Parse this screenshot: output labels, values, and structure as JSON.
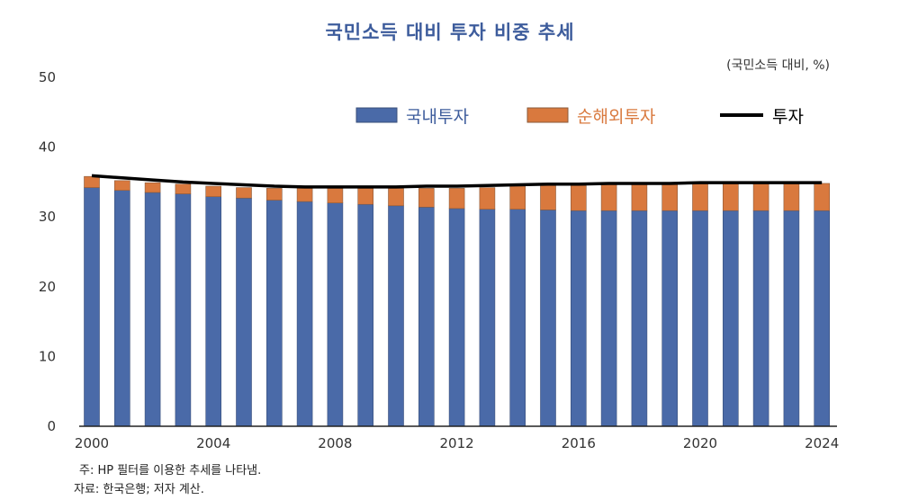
{
  "chart_data": {
    "type": "bar",
    "title": "국민소득 대비 투자 비중 추세",
    "unit": "(국민소득 대비, %)",
    "stacked": true,
    "x": [
      2000,
      2001,
      2002,
      2003,
      2004,
      2005,
      2006,
      2007,
      2008,
      2009,
      2010,
      2011,
      2012,
      2013,
      2014,
      2015,
      2016,
      2017,
      2018,
      2019,
      2020,
      2021,
      2022,
      2023,
      2024
    ],
    "xticks": [
      "2000",
      "2004",
      "2008",
      "2012",
      "2016",
      "2020",
      "2024"
    ],
    "yticks": [
      "0",
      "10",
      "20",
      "30",
      "40",
      "50"
    ],
    "ylim": [
      0,
      50
    ],
    "grid": false,
    "legend_position": "top-right",
    "series": [
      {
        "name": "국내투자",
        "type": "bar",
        "color": "#4a6aa8",
        "values": [
          34.2,
          33.8,
          33.5,
          33.3,
          32.9,
          32.7,
          32.4,
          32.2,
          32.0,
          31.8,
          31.6,
          31.4,
          31.2,
          31.1,
          31.1,
          31.0,
          30.9,
          30.9,
          30.9,
          30.9,
          30.9,
          30.9,
          30.9,
          30.9,
          30.9
        ]
      },
      {
        "name": "순해외투자",
        "type": "bar",
        "color": "#d9793e",
        "values": [
          1.6,
          1.4,
          1.4,
          1.4,
          1.5,
          1.5,
          1.7,
          1.9,
          2.1,
          2.3,
          2.5,
          2.7,
          2.9,
          3.1,
          3.3,
          3.5,
          3.6,
          3.8,
          3.8,
          3.8,
          3.9,
          3.9,
          3.9,
          3.9,
          3.9
        ]
      },
      {
        "name": "투자",
        "type": "line",
        "color": "#000000",
        "values": [
          35.9,
          35.6,
          35.3,
          35.0,
          34.8,
          34.6,
          34.4,
          34.3,
          34.3,
          34.3,
          34.3,
          34.4,
          34.4,
          34.5,
          34.6,
          34.7,
          34.7,
          34.8,
          34.8,
          34.8,
          34.9,
          34.9,
          34.9,
          34.9,
          34.9
        ]
      }
    ],
    "notes": [
      "주: HP 필터를 이용한 추세를 나타냄.",
      "자료: 한국은행; 저자 계산."
    ]
  }
}
